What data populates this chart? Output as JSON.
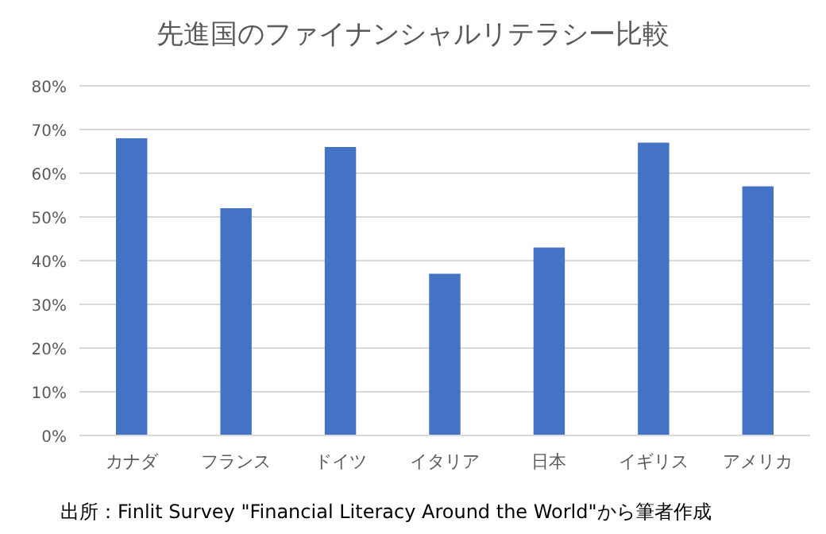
{
  "chart_data": {
    "type": "bar",
    "title": "先進国のファイナンシャルリテラシー比較",
    "categories": [
      "カナダ",
      "フランス",
      "ドイツ",
      "イタリア",
      "日本",
      "イギリス",
      "アメリカ"
    ],
    "values": [
      68,
      52,
      66,
      37,
      43,
      67,
      57
    ],
    "color": "#4472c4",
    "ylim": [
      0,
      80
    ],
    "yticks": [
      {
        "value": 0,
        "label": "0%"
      },
      {
        "value": 10,
        "label": "10%"
      },
      {
        "value": 20,
        "label": "20%"
      },
      {
        "value": 30,
        "label": "30%"
      },
      {
        "value": 40,
        "label": "40%"
      },
      {
        "value": 50,
        "label": "50%"
      },
      {
        "value": 60,
        "label": "60%"
      },
      {
        "value": 70,
        "label": "70%"
      },
      {
        "value": 80,
        "label": "80%"
      }
    ],
    "grid": "y",
    "annotations": [
      "出所：Finlit Survey \"Financial Literacy Around the World\"から筆者作成"
    ]
  }
}
